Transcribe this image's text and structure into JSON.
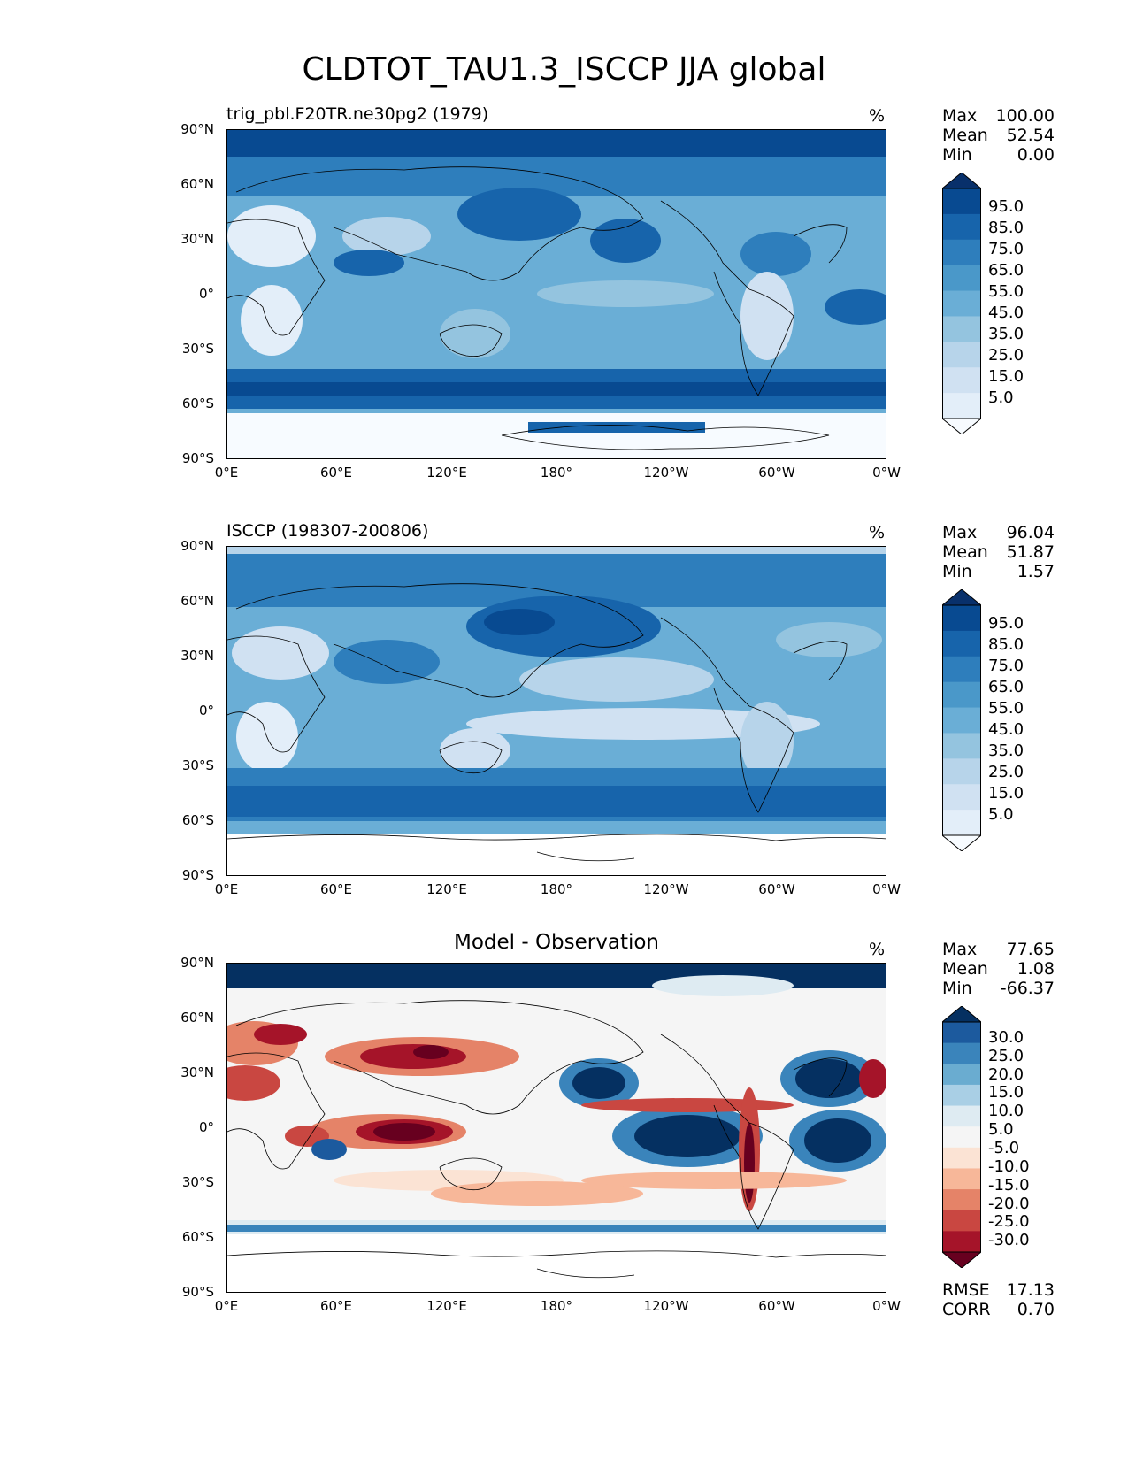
{
  "figure_title": "CLDTOT_TAU1.3_ISCCP JJA global",
  "colors": {
    "blues": [
      "#f7fbff",
      "#e3eef9",
      "#d0e1f2",
      "#b7d4ea",
      "#94c4df",
      "#6aaed6",
      "#4a98c9",
      "#2e7ebc",
      "#1764ab",
      "#084a91",
      "#08306b"
    ],
    "rdbu": [
      "#67001f",
      "#a51429",
      "#c94741",
      "#e58368",
      "#f7b799",
      "#fbe3d4",
      "#f5f5f5",
      "#deebf2",
      "#a9cfe5",
      "#6aacd0",
      "#3a84bb",
      "#1c5a9e",
      "#053061"
    ]
  },
  "panels": [
    {
      "title": "trig_pbl.F20TR.ne30pg2 (1979)",
      "units": "%",
      "stats": {
        "max_label": "Max",
        "max": "100.00",
        "mean_label": "Mean",
        "mean": "52.54",
        "min_label": "Min",
        "min": "0.00"
      },
      "colorbar_labels": [
        "95.0",
        "85.0",
        "75.0",
        "65.0",
        "55.0",
        "45.0",
        "35.0",
        "25.0",
        "15.0",
        "5.0"
      ]
    },
    {
      "title": "ISCCP (198307-200806)",
      "units": "%",
      "stats": {
        "max_label": "Max",
        "max": "96.04",
        "mean_label": "Mean",
        "mean": "51.87",
        "min_label": "Min",
        "min": "1.57"
      },
      "colorbar_labels": [
        "95.0",
        "85.0",
        "75.0",
        "65.0",
        "55.0",
        "45.0",
        "35.0",
        "25.0",
        "15.0",
        "5.0"
      ]
    },
    {
      "title": "Model - Observation",
      "units": "%",
      "stats": {
        "max_label": "Max",
        "max": "77.65",
        "mean_label": "Mean",
        "mean": "1.08",
        "min_label": "Min",
        "min": "-66.37"
      },
      "colorbar_labels": [
        "30.0",
        "25.0",
        "20.0",
        "15.0",
        "10.0",
        "5.0",
        "-5.0",
        "-10.0",
        "-15.0",
        "-20.0",
        "-25.0",
        "-30.0"
      ],
      "rmse_label": "RMSE",
      "rmse": "17.13",
      "corr_label": "CORR",
      "corr": "0.70"
    }
  ],
  "y_ticks": [
    "90°N",
    "60°N",
    "30°N",
    "0°",
    "30°S",
    "60°S",
    "90°S"
  ],
  "x_ticks": [
    "0°E",
    "60°E",
    "120°E",
    "180°",
    "120°W",
    "60°W",
    "0°W"
  ]
}
